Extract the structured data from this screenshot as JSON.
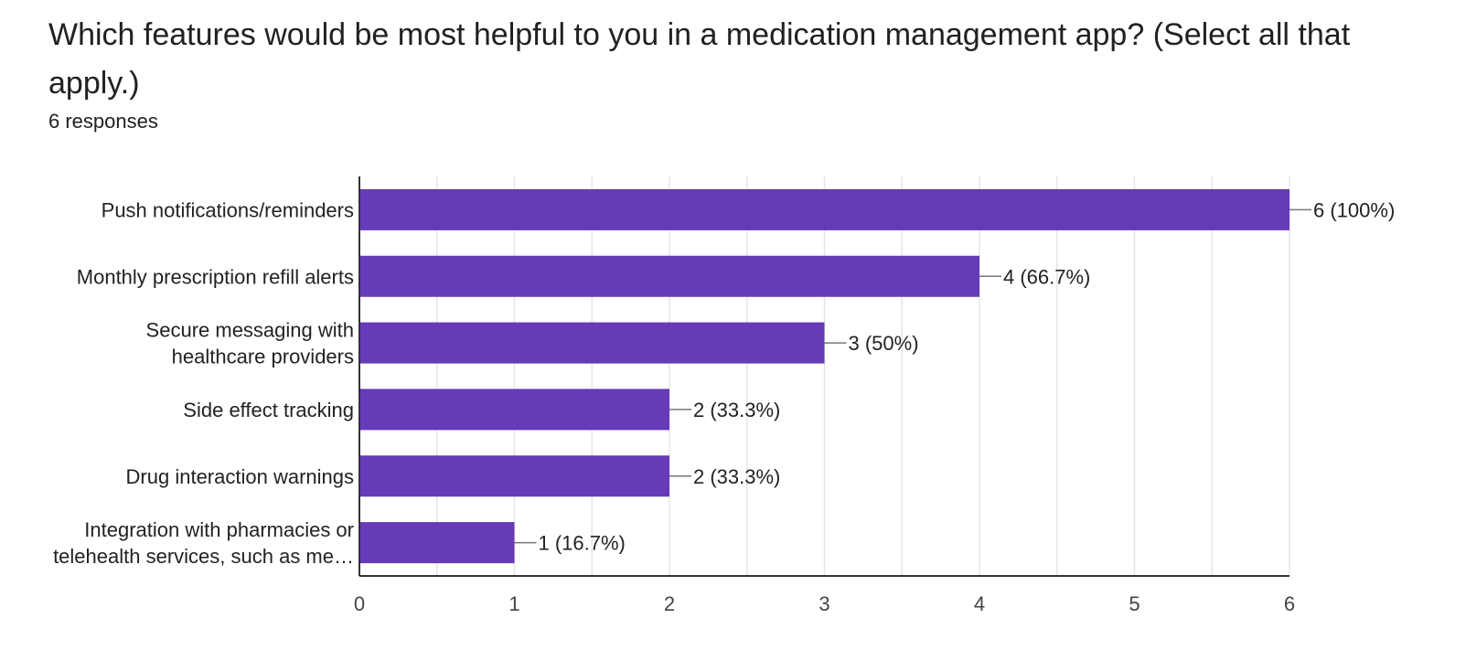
{
  "question": {
    "title": "Which features would be most helpful to you in a medication management app? (Select all that apply.)",
    "responses": "6 responses"
  },
  "chart_data": {
    "type": "bar",
    "orientation": "horizontal",
    "categories": [
      [
        "Push notifications/reminders"
      ],
      [
        "Monthly prescription refill alerts"
      ],
      [
        "Secure messaging with",
        "healthcare providers"
      ],
      [
        "Side effect tracking"
      ],
      [
        "Drug interaction warnings"
      ],
      [
        "Integration with pharmacies or",
        "telehealth services, such as me…"
      ]
    ],
    "values": [
      6,
      4,
      3,
      2,
      2,
      1
    ],
    "data_labels": [
      "6 (100%)",
      "4 (66.7%)",
      "3 (50%)",
      "2 (33.3%)",
      "2 (33.3%)",
      "1 (16.7%)"
    ],
    "xlim": [
      0,
      6
    ],
    "x_ticks": [
      "0",
      "1",
      "2",
      "3",
      "4",
      "5",
      "6"
    ],
    "grid": true,
    "bar_color": "#673ab7",
    "grid_color": "#e6e6e6",
    "axis_color": "#333333"
  }
}
